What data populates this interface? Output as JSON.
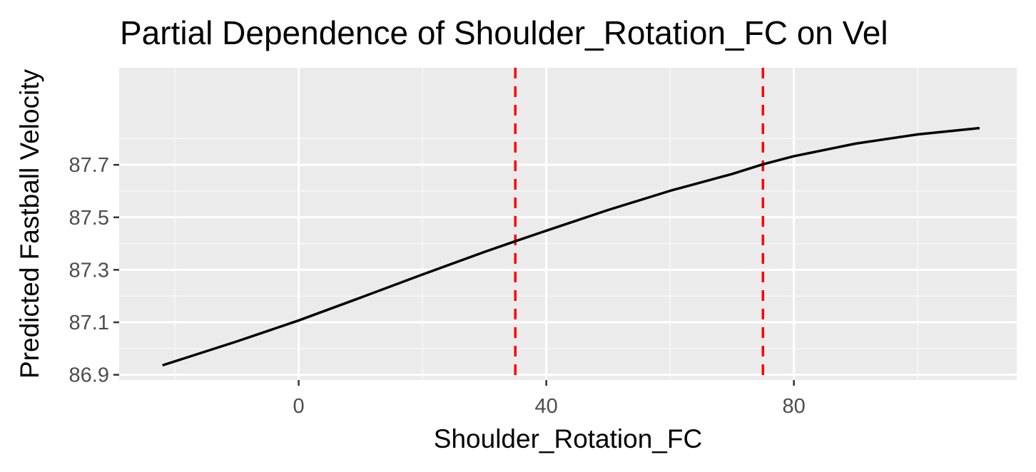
{
  "chart_data": {
    "type": "line",
    "title": "Partial Dependence of Shoulder_Rotation_FC on Vel",
    "xlabel": "Shoulder_Rotation_FC",
    "ylabel": "Predicted Fastball Velocity",
    "xlim": [
      -29,
      116
    ],
    "ylim": [
      86.88,
      88.07
    ],
    "x_ticks": [
      0,
      40,
      80
    ],
    "x_tick_labels": [
      "0",
      "40",
      "80"
    ],
    "x_minor_ticks": [
      -20,
      20,
      60,
      100
    ],
    "y_ticks": [
      86.9,
      87.1,
      87.3,
      87.5,
      87.7
    ],
    "y_tick_labels": [
      "86.9",
      "87.1",
      "87.3",
      "87.5",
      "87.7"
    ],
    "y_minor_ticks": [
      87.0,
      87.2,
      87.4,
      87.6,
      87.8
    ],
    "grid": true,
    "series": [
      {
        "color": "#000000",
        "x": [
          -22,
          -10,
          0,
          10,
          20,
          30,
          35,
          40,
          50,
          60,
          70,
          75,
          80,
          90,
          100,
          110
        ],
        "y": [
          86.936,
          87.027,
          87.107,
          87.194,
          87.282,
          87.368,
          87.409,
          87.449,
          87.528,
          87.601,
          87.665,
          87.702,
          87.733,
          87.781,
          87.816,
          87.84
        ]
      }
    ],
    "reference_lines": [
      {
        "axis": "x",
        "value": 35,
        "color": "#ff0000",
        "style": "dashed"
      },
      {
        "axis": "x",
        "value": 75,
        "color": "#ff0000",
        "style": "dashed"
      }
    ],
    "colors": {
      "panel_background": "#ebebeb",
      "grid_major": "#ffffff",
      "grid_minor": "#f7f7f7",
      "tick_mark": "#333333"
    }
  }
}
